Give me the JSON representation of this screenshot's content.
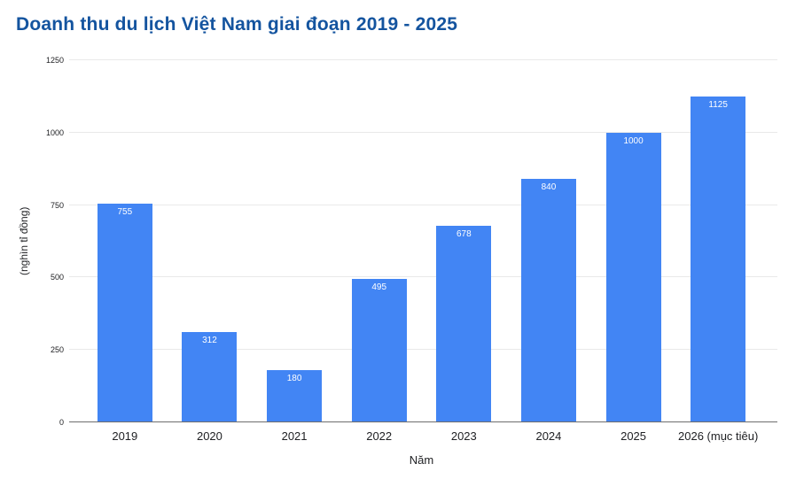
{
  "chart_data": {
    "type": "bar",
    "title": "Doanh thu du lịch Việt Nam giai đoạn 2019 - 2025",
    "xlabel": "Năm",
    "ylabel": "(nghìn tỉ đồng)",
    "categories": [
      "2019",
      "2020",
      "2021",
      "2022",
      "2023",
      "2024",
      "2025",
      "2026 (mục tiêu)"
    ],
    "values": [
      755,
      312,
      180,
      495,
      678,
      840,
      1000,
      1125
    ],
    "ylim": [
      0,
      1250
    ],
    "yticks": [
      0,
      250,
      500,
      750,
      1000,
      1250
    ],
    "grid": "horizontal",
    "legend": "none",
    "value_label_position": "inside-top",
    "colors": {
      "bar": "#4285F4",
      "title": "#14549F",
      "axis_text": "#202124",
      "gridline": "#e9e9e9",
      "baseline": "#6e6e6e",
      "value_label": "#ffffff",
      "background": "#ffffff"
    }
  }
}
